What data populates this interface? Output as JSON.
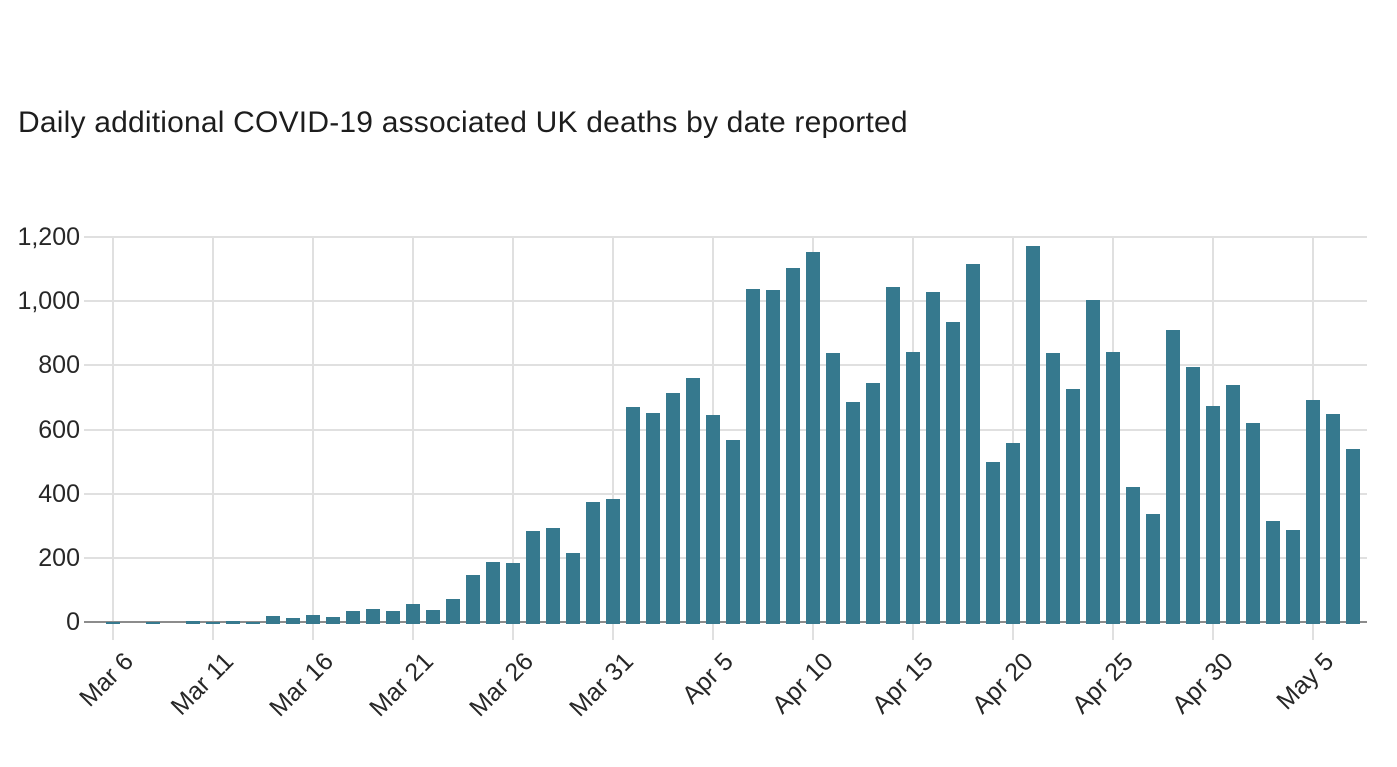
{
  "page": {
    "background": "#ffffff"
  },
  "colors": {
    "bar": "#36798E",
    "gridline": "#e0e0e0",
    "axis_line": "#8c8c8c",
    "tick_text": "#272727",
    "title_text": "#1d1d1d"
  },
  "chart_data": {
    "type": "bar",
    "title": "Daily additional COVID-19 associated UK deaths by date reported",
    "xlabel": "",
    "ylabel": "",
    "ylim": [
      0,
      1200
    ],
    "grid": true,
    "legend": "none",
    "y_ticks": [
      0,
      200,
      400,
      600,
      800,
      1000,
      1200
    ],
    "y_tick_labels": [
      "0",
      "200",
      "400",
      "600",
      "800",
      "1,000",
      "1,200"
    ],
    "x_tick_every": 5,
    "x_tick_labels": [
      "Mar 6",
      "Mar 11",
      "Mar 16",
      "Mar 21",
      "Mar 26",
      "Mar 31",
      "Apr 5",
      "Apr 10",
      "Apr 15",
      "Apr 20",
      "Apr 25",
      "Apr 30",
      "May 5"
    ],
    "categories": [
      "Mar 6",
      "Mar 7",
      "Mar 8",
      "Mar 9",
      "Mar 10",
      "Mar 11",
      "Mar 12",
      "Mar 13",
      "Mar 14",
      "Mar 15",
      "Mar 16",
      "Mar 17",
      "Mar 18",
      "Mar 19",
      "Mar 20",
      "Mar 21",
      "Mar 22",
      "Mar 23",
      "Mar 24",
      "Mar 25",
      "Mar 26",
      "Mar 27",
      "Mar 28",
      "Mar 29",
      "Mar 30",
      "Mar 31",
      "Apr 1",
      "Apr 2",
      "Apr 3",
      "Apr 4",
      "Apr 5",
      "Apr 6",
      "Apr 7",
      "Apr 8",
      "Apr 9",
      "Apr 10",
      "Apr 11",
      "Apr 12",
      "Apr 13",
      "Apr 14",
      "Apr 15",
      "Apr 16",
      "Apr 17",
      "Apr 18",
      "Apr 19",
      "Apr 20",
      "Apr 21",
      "Apr 22",
      "Apr 23",
      "Apr 24",
      "Apr 25",
      "Apr 26",
      "Apr 27",
      "Apr 28",
      "Apr 29",
      "Apr 30",
      "May 1",
      "May 2",
      "May 3",
      "May 4",
      "May 5",
      "May 6",
      "May 7"
    ],
    "values": [
      1,
      0,
      1,
      0,
      4,
      1,
      2,
      1,
      18,
      14,
      22,
      16,
      34,
      42,
      35,
      55,
      36,
      73,
      147,
      186,
      184,
      284,
      294,
      214,
      374,
      382,
      670,
      652,
      714,
      760,
      644,
      568,
      1038,
      1034,
      1103,
      1152,
      839,
      686,
      744,
      1044,
      842,
      1029,
      935,
      1115,
      498,
      559,
      1172,
      837,
      727,
      1005,
      843,
      420,
      338,
      909,
      795,
      674,
      739,
      621,
      315,
      288,
      693,
      649,
      539
    ]
  }
}
